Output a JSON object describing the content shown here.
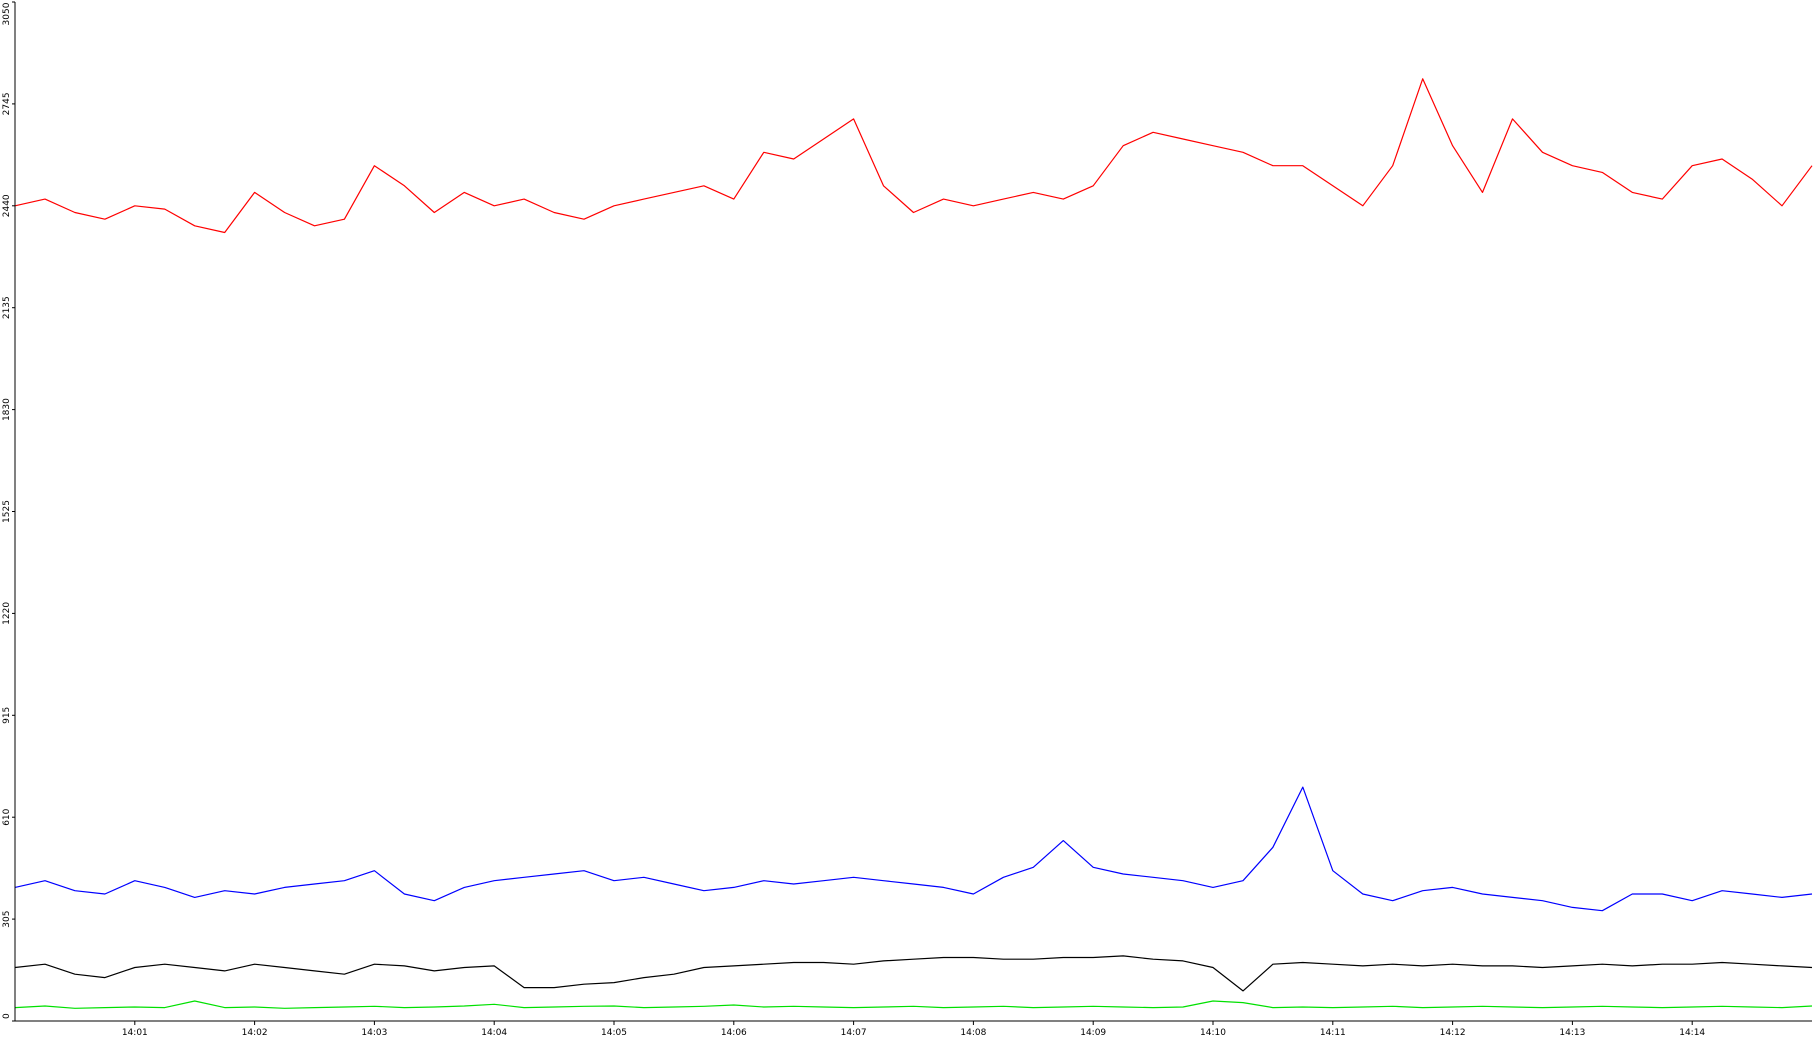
{
  "chart_data": {
    "type": "line",
    "title": "",
    "xlabel": "",
    "ylabel": "",
    "ylim": [
      0,
      3050
    ],
    "yticks": [
      0,
      305,
      610,
      915,
      1220,
      1525,
      1830,
      2135,
      2440,
      2745,
      3050
    ],
    "xlim": [
      "14:00:00",
      "14:15:00"
    ],
    "xticks": [
      "14:01",
      "14:02",
      "14:03",
      "14:04",
      "14:05",
      "14:06",
      "14:07",
      "14:08",
      "14:09",
      "14:10",
      "14:11",
      "14:12",
      "14:13",
      "14:14"
    ],
    "grid": false,
    "legend": "none",
    "series": [
      {
        "color": "#ff0000",
        "x": [
          "14:00:00",
          "14:00:15",
          "14:00:30",
          "14:00:45",
          "14:01:00",
          "14:01:15",
          "14:01:30",
          "14:01:45",
          "14:02:00",
          "14:02:15",
          "14:02:30",
          "14:02:45",
          "14:03:00",
          "14:03:15",
          "14:03:30",
          "14:03:45",
          "14:04:00",
          "14:04:15",
          "14:04:30",
          "14:04:45",
          "14:05:00",
          "14:05:15",
          "14:05:30",
          "14:05:45",
          "14:06:00",
          "14:06:15",
          "14:06:30",
          "14:06:45",
          "14:07:00",
          "14:07:15",
          "14:07:30",
          "14:07:45",
          "14:08:00",
          "14:08:15",
          "14:08:30",
          "14:08:45",
          "14:09:00",
          "14:09:15",
          "14:09:30",
          "14:09:45",
          "14:10:00",
          "14:10:15",
          "14:10:30",
          "14:10:45",
          "14:11:00",
          "14:11:15",
          "14:11:30",
          "14:11:45",
          "14:12:00",
          "14:12:15",
          "14:12:30",
          "14:12:45",
          "14:13:00",
          "14:13:15",
          "14:13:30",
          "14:13:45",
          "14:14:00",
          "14:14:15",
          "14:14:30",
          "14:14:45",
          "14:15:00"
        ],
        "values": [
          2440,
          2460,
          2420,
          2400,
          2440,
          2430,
          2380,
          2360,
          2480,
          2420,
          2380,
          2400,
          2560,
          2500,
          2420,
          2480,
          2440,
          2460,
          2420,
          2400,
          2440,
          2460,
          2480,
          2500,
          2460,
          2600,
          2580,
          2640,
          2700,
          2500,
          2420,
          2460,
          2440,
          2460,
          2480,
          2460,
          2500,
          2620,
          2660,
          2640,
          2620,
          2600,
          2560,
          2560,
          2500,
          2440,
          2560,
          2820,
          2620,
          2480,
          2700,
          2600,
          2560,
          2540,
          2480,
          2460,
          2560,
          2580,
          2520,
          2440,
          2560
        ]
      },
      {
        "color": "#0000ff",
        "x": [
          "14:00:00",
          "14:00:15",
          "14:00:30",
          "14:00:45",
          "14:01:00",
          "14:01:15",
          "14:01:30",
          "14:01:45",
          "14:02:00",
          "14:02:15",
          "14:02:30",
          "14:02:45",
          "14:03:00",
          "14:03:15",
          "14:03:30",
          "14:03:45",
          "14:04:00",
          "14:04:15",
          "14:04:30",
          "14:04:45",
          "14:05:00",
          "14:05:15",
          "14:05:30",
          "14:05:45",
          "14:06:00",
          "14:06:15",
          "14:06:30",
          "14:06:45",
          "14:07:00",
          "14:07:15",
          "14:07:30",
          "14:07:45",
          "14:08:00",
          "14:08:15",
          "14:08:30",
          "14:08:45",
          "14:09:00",
          "14:09:15",
          "14:09:30",
          "14:09:45",
          "14:10:00",
          "14:10:15",
          "14:10:30",
          "14:10:45",
          "14:11:00",
          "14:11:15",
          "14:11:30",
          "14:11:45",
          "14:12:00",
          "14:12:15",
          "14:12:30",
          "14:12:45",
          "14:13:00",
          "14:13:15",
          "14:13:30",
          "14:13:45",
          "14:14:00",
          "14:14:15",
          "14:14:30",
          "14:14:45",
          "14:15:00"
        ],
        "values": [
          400,
          420,
          390,
          380,
          420,
          400,
          370,
          390,
          380,
          400,
          410,
          420,
          450,
          380,
          360,
          400,
          420,
          430,
          440,
          450,
          420,
          430,
          410,
          390,
          400,
          420,
          410,
          420,
          430,
          420,
          410,
          400,
          380,
          430,
          460,
          540,
          460,
          440,
          430,
          420,
          400,
          420,
          520,
          700,
          450,
          380,
          360,
          390,
          400,
          380,
          370,
          360,
          340,
          330,
          380,
          380,
          360,
          390,
          380,
          370,
          380
        ]
      },
      {
        "color": "#000000",
        "x": [
          "14:00:00",
          "14:00:15",
          "14:00:30",
          "14:00:45",
          "14:01:00",
          "14:01:15",
          "14:01:30",
          "14:01:45",
          "14:02:00",
          "14:02:15",
          "14:02:30",
          "14:02:45",
          "14:03:00",
          "14:03:15",
          "14:03:30",
          "14:03:45",
          "14:04:00",
          "14:04:15",
          "14:04:30",
          "14:04:45",
          "14:05:00",
          "14:05:15",
          "14:05:30",
          "14:05:45",
          "14:06:00",
          "14:06:15",
          "14:06:30",
          "14:06:45",
          "14:07:00",
          "14:07:15",
          "14:07:30",
          "14:07:45",
          "14:08:00",
          "14:08:15",
          "14:08:30",
          "14:08:45",
          "14:09:00",
          "14:09:15",
          "14:09:30",
          "14:09:45",
          "14:10:00",
          "14:10:15",
          "14:10:30",
          "14:10:45",
          "14:11:00",
          "14:11:15",
          "14:11:30",
          "14:11:45",
          "14:12:00",
          "14:12:15",
          "14:12:30",
          "14:12:45",
          "14:13:00",
          "14:13:15",
          "14:13:30",
          "14:13:45",
          "14:14:00",
          "14:14:15",
          "14:14:30",
          "14:14:45",
          "14:15:00"
        ],
        "values": [
          160,
          170,
          140,
          130,
          160,
          170,
          160,
          150,
          170,
          160,
          150,
          140,
          170,
          165,
          150,
          160,
          165,
          100,
          100,
          110,
          115,
          130,
          140,
          160,
          165,
          170,
          175,
          175,
          170,
          180,
          185,
          190,
          190,
          185,
          185,
          190,
          190,
          195,
          185,
          180,
          160,
          90,
          170,
          175,
          170,
          165,
          170,
          165,
          170,
          165,
          165,
          160,
          165,
          170,
          165,
          170,
          170,
          175,
          170,
          165,
          160
        ]
      },
      {
        "color": "#00e000",
        "x": [
          "14:00:00",
          "14:00:15",
          "14:00:30",
          "14:00:45",
          "14:01:00",
          "14:01:15",
          "14:01:30",
          "14:01:45",
          "14:02:00",
          "14:02:15",
          "14:02:30",
          "14:02:45",
          "14:03:00",
          "14:03:15",
          "14:03:30",
          "14:03:45",
          "14:04:00",
          "14:04:15",
          "14:04:30",
          "14:04:45",
          "14:05:00",
          "14:05:15",
          "14:05:30",
          "14:05:45",
          "14:06:00",
          "14:06:15",
          "14:06:30",
          "14:06:45",
          "14:07:00",
          "14:07:15",
          "14:07:30",
          "14:07:45",
          "14:08:00",
          "14:08:15",
          "14:08:30",
          "14:08:45",
          "14:09:00",
          "14:09:15",
          "14:09:30",
          "14:09:45",
          "14:10:00",
          "14:10:15",
          "14:10:30",
          "14:10:45",
          "14:11:00",
          "14:11:15",
          "14:11:30",
          "14:11:45",
          "14:12:00",
          "14:12:15",
          "14:12:30",
          "14:12:45",
          "14:13:00",
          "14:13:15",
          "14:13:30",
          "14:13:45",
          "14:14:00",
          "14:14:15",
          "14:14:30",
          "14:14:45",
          "14:15:00"
        ],
        "values": [
          40,
          45,
          38,
          40,
          42,
          40,
          60,
          40,
          42,
          38,
          40,
          42,
          44,
          40,
          42,
          45,
          50,
          40,
          42,
          44,
          45,
          40,
          42,
          44,
          48,
          42,
          44,
          42,
          40,
          42,
          44,
          40,
          42,
          44,
          40,
          42,
          44,
          42,
          40,
          42,
          60,
          55,
          40,
          42,
          40,
          42,
          44,
          40,
          42,
          44,
          42,
          40,
          42,
          44,
          42,
          40,
          42,
          44,
          42,
          40,
          45
        ]
      }
    ]
  }
}
